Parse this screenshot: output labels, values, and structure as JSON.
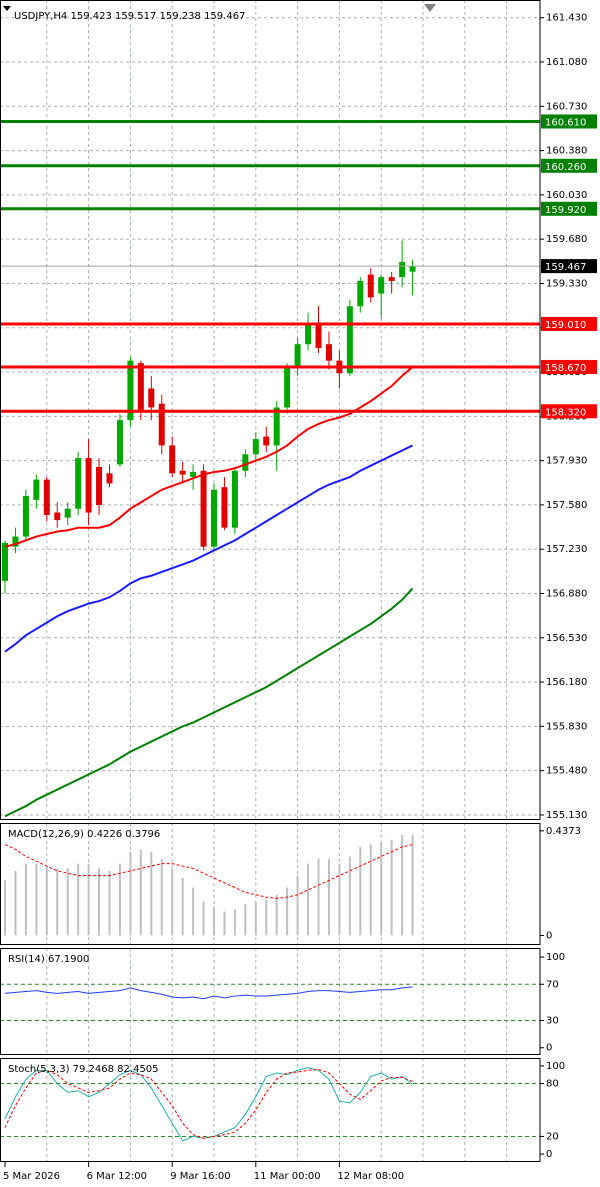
{
  "chart_data": [
    {
      "type": "candlestick",
      "title": "USDJPY,H4 159.423 159.517 159.238 159.467",
      "categories": [
        "5 Mar 2026",
        null,
        null,
        null,
        null,
        null,
        null,
        null,
        "6 Mar 12:00",
        null,
        null,
        null,
        null,
        null,
        null,
        null,
        "9 Mar 16:00",
        null,
        null,
        null,
        null,
        null,
        null,
        null,
        "11 Mar 00:00",
        null,
        null,
        null,
        null,
        null,
        null,
        null,
        "12 Mar 08:00",
        null,
        null,
        null,
        null,
        null,
        null,
        null
      ],
      "open": [
        156.98,
        157.25,
        157.33,
        157.62,
        157.78,
        157.52,
        157.48,
        157.55,
        157.95,
        157.88,
        157.83,
        157.9,
        158.25,
        158.7,
        158.5,
        158.38,
        158.05,
        157.85,
        157.8,
        157.85,
        157.25,
        157.72,
        157.4,
        157.85,
        157.98,
        158.12,
        158.05,
        158.35,
        158.67,
        158.85,
        159.0,
        158.85,
        158.72,
        158.62,
        159.15,
        159.4,
        159.25,
        159.38,
        159.38,
        159.423
      ],
      "high": [
        157.3,
        157.4,
        157.7,
        157.82,
        157.8,
        157.6,
        157.6,
        158.0,
        158.1,
        157.95,
        157.9,
        158.3,
        158.75,
        158.72,
        158.6,
        158.45,
        158.12,
        157.92,
        157.9,
        157.9,
        157.75,
        157.8,
        157.88,
        158.02,
        158.15,
        158.2,
        158.4,
        158.7,
        158.9,
        159.1,
        159.15,
        158.95,
        158.8,
        159.2,
        159.38,
        159.45,
        159.4,
        159.42,
        159.67,
        159.517
      ],
      "low": [
        156.88,
        157.2,
        157.3,
        157.55,
        157.45,
        157.4,
        157.42,
        157.5,
        157.42,
        157.5,
        157.72,
        157.88,
        158.2,
        158.25,
        158.25,
        157.98,
        157.8,
        157.75,
        157.7,
        157.22,
        157.22,
        157.38,
        157.35,
        157.8,
        157.92,
        158.0,
        157.85,
        158.3,
        158.6,
        158.8,
        158.78,
        158.65,
        158.5,
        158.6,
        159.1,
        159.18,
        159.05,
        159.25,
        159.3,
        159.238
      ],
      "close": [
        157.28,
        157.33,
        157.65,
        157.78,
        157.5,
        157.46,
        157.55,
        157.95,
        157.52,
        157.58,
        157.75,
        158.25,
        158.72,
        158.32,
        158.35,
        158.05,
        157.83,
        157.82,
        157.84,
        157.25,
        157.7,
        157.4,
        157.85,
        157.98,
        158.1,
        158.05,
        158.35,
        158.67,
        158.85,
        159.0,
        158.82,
        158.72,
        158.62,
        159.15,
        159.35,
        159.22,
        159.38,
        159.35,
        159.5,
        159.467
      ],
      "up_color": "#00a800",
      "down_color": "#e00000",
      "series": [
        {
          "color": "#ff0000",
          "values": [
            157.25,
            157.27,
            157.3,
            157.33,
            157.35,
            157.37,
            157.38,
            157.4,
            157.4,
            157.4,
            157.42,
            157.48,
            157.55,
            157.6,
            157.65,
            157.7,
            157.73,
            157.76,
            157.79,
            157.82,
            157.84,
            157.85,
            157.87,
            157.9,
            157.93,
            157.96,
            158.0,
            158.05,
            158.12,
            158.18,
            158.22,
            158.25,
            158.27,
            158.3,
            158.35,
            158.4,
            158.46,
            158.52,
            158.6,
            158.67
          ]
        },
        {
          "color": "#1a1aff",
          "values": [
            156.42,
            156.48,
            156.55,
            156.6,
            156.65,
            156.7,
            156.74,
            156.77,
            156.8,
            156.82,
            156.85,
            156.9,
            156.96,
            157.0,
            157.02,
            157.05,
            157.08,
            157.11,
            157.14,
            157.18,
            157.22,
            157.26,
            157.3,
            157.35,
            157.4,
            157.45,
            157.5,
            157.55,
            157.6,
            157.65,
            157.7,
            157.74,
            157.77,
            157.8,
            157.85,
            157.89,
            157.93,
            157.97,
            158.01,
            158.05
          ]
        },
        {
          "color": "#008000",
          "values": [
            155.12,
            155.16,
            155.2,
            155.25,
            155.29,
            155.33,
            155.37,
            155.41,
            155.45,
            155.49,
            155.53,
            155.58,
            155.63,
            155.67,
            155.71,
            155.75,
            155.79,
            155.83,
            155.86,
            155.9,
            155.94,
            155.98,
            156.02,
            156.06,
            156.1,
            156.14,
            156.19,
            156.24,
            156.29,
            156.34,
            156.39,
            156.44,
            156.49,
            156.54,
            156.59,
            156.64,
            156.7,
            156.76,
            156.83,
            156.92
          ]
        }
      ],
      "levels": [
        {
          "value": 160.61,
          "label": "160.610",
          "color": "#008000"
        },
        {
          "value": 160.26,
          "label": "160.260",
          "color": "#008000"
        },
        {
          "value": 159.92,
          "label": "159.920",
          "color": "#008000"
        },
        {
          "value": 159.01,
          "label": "159.010",
          "color": "#ff0000"
        },
        {
          "value": 158.67,
          "label": "158.670",
          "color": "#ff0000"
        },
        {
          "value": 158.32,
          "label": "158.320",
          "color": "#ff0000"
        }
      ],
      "last_price": 159.467,
      "ylim": [
        155.09,
        161.57
      ],
      "yticks": [
        {
          "value": 161.43,
          "label": "161.430"
        },
        {
          "value": 161.08,
          "label": "161.080"
        },
        {
          "value": 160.73,
          "label": "160.730"
        },
        {
          "value": 160.38,
          "label": "160.380"
        },
        {
          "value": 160.03,
          "label": "160.030"
        },
        {
          "value": 159.68,
          "label": "159.680"
        },
        {
          "value": 159.33,
          "label": "159.330"
        },
        {
          "value": 158.98,
          "label": "158.980"
        },
        {
          "value": 158.63,
          "label": "158.630"
        },
        {
          "value": 158.28,
          "label": "158.280"
        },
        {
          "value": 157.93,
          "label": "157.930"
        },
        {
          "value": 157.58,
          "label": "157.580"
        },
        {
          "value": 157.23,
          "label": "157.230"
        },
        {
          "value": 156.88,
          "label": "156.880"
        },
        {
          "value": 156.53,
          "label": "156.530"
        },
        {
          "value": 156.18,
          "label": "156.180"
        },
        {
          "value": 155.83,
          "label": "155.830"
        },
        {
          "value": 155.48,
          "label": "155.480"
        },
        {
          "value": 155.13,
          "label": "155.130"
        }
      ],
      "grid": true
    },
    {
      "type": "macd",
      "title": "MACD(12,26,9) 0.4226 0.3796",
      "values": [
        0.23,
        0.27,
        0.3,
        0.3,
        0.29,
        0.28,
        0.28,
        0.3,
        0.3,
        0.28,
        0.27,
        0.3,
        0.35,
        0.36,
        0.35,
        0.32,
        0.28,
        0.24,
        0.2,
        0.14,
        0.12,
        0.1,
        0.11,
        0.13,
        0.14,
        0.15,
        0.17,
        0.2,
        0.25,
        0.3,
        0.32,
        0.32,
        0.3,
        0.33,
        0.37,
        0.38,
        0.39,
        0.4,
        0.42,
        0.4226
      ],
      "color": "#c0c0c0",
      "series": [
        {
          "color": "#ff0000",
          "dash": true,
          "values": [
            0.38,
            0.36,
            0.33,
            0.31,
            0.29,
            0.27,
            0.26,
            0.25,
            0.25,
            0.25,
            0.25,
            0.26,
            0.27,
            0.28,
            0.29,
            0.3,
            0.3,
            0.29,
            0.28,
            0.26,
            0.24,
            0.22,
            0.2,
            0.18,
            0.17,
            0.16,
            0.155,
            0.16,
            0.17,
            0.19,
            0.21,
            0.23,
            0.25,
            0.27,
            0.29,
            0.31,
            0.33,
            0.35,
            0.37,
            0.3796
          ]
        }
      ],
      "ylim": [
        -0.04,
        0.47
      ],
      "yticks": [
        0.4373,
        0
      ],
      "levels": []
    },
    {
      "type": "line",
      "title": "RSI(14) 67.1900",
      "series": [
        {
          "color": "#1e3cff",
          "values": [
            60,
            61,
            62,
            63,
            61,
            60,
            61,
            62,
            60,
            61,
            62,
            63,
            66,
            63,
            61,
            59,
            56,
            55,
            56,
            54,
            57,
            55,
            57,
            58,
            57,
            57,
            58,
            59,
            60,
            62,
            63,
            63,
            62,
            61,
            62,
            63,
            64,
            64,
            66,
            67.19
          ]
        }
      ],
      "ylim": [
        -8,
        110
      ],
      "yticks": [
        100,
        70,
        30,
        0
      ],
      "levels": [
        70,
        30
      ]
    },
    {
      "type": "line",
      "title": "Stoch(5,3,3) 79.2468 82.4505",
      "series": [
        {
          "color": "#20b2aa",
          "values": [
            40,
            65,
            85,
            95,
            95,
            80,
            70,
            72,
            65,
            70,
            80,
            90,
            95,
            90,
            75,
            55,
            35,
            15,
            20,
            18,
            20,
            25,
            30,
            45,
            65,
            88,
            92,
            90,
            95,
            98,
            95,
            85,
            60,
            58,
            70,
            88,
            92,
            85,
            88,
            79.2468
          ]
        },
        {
          "color": "#ff0000",
          "dash": true,
          "values": [
            30,
            55,
            75,
            92,
            95,
            90,
            80,
            75,
            70,
            72,
            75,
            85,
            92,
            90,
            85,
            70,
            55,
            35,
            22,
            18,
            20,
            22,
            25,
            35,
            50,
            70,
            85,
            92,
            93,
            95,
            96,
            92,
            80,
            68,
            62,
            72,
            83,
            87,
            87,
            82.4505
          ]
        }
      ],
      "ylim": [
        -9,
        109
      ],
      "yticks": [
        100,
        80,
        20,
        0
      ],
      "levels": [
        80,
        20
      ]
    }
  ]
}
